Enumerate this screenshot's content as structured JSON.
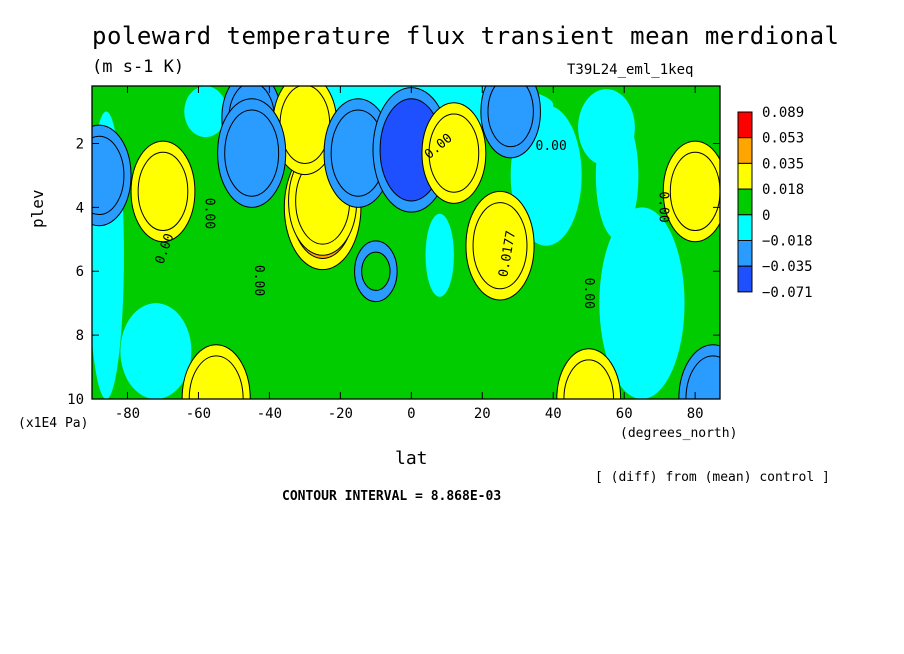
{
  "chart_data": {
    "type": "heatmap",
    "title": "poleward temperature flux transient mean merdional",
    "units": "(m s-1 K)",
    "run_id": "T39L24_eml_1keq",
    "xlabel": "lat",
    "x_unit_label": "(degrees_north)",
    "ylabel": "plev",
    "y_unit_label": "(x1E4 Pa)",
    "x_ticks": [
      -80,
      -60,
      -40,
      -20,
      0,
      20,
      40,
      60,
      80
    ],
    "y_ticks": [
      2,
      4,
      6,
      8,
      10
    ],
    "xlim": [
      -90,
      87
    ],
    "ylim": [
      10,
      0.2
    ],
    "diff_note": "[ (diff) from (mean) control ]",
    "contour_interval": "CONTOUR INTERVAL = 8.868E-03",
    "colorbar": {
      "labels": [
        "0.089",
        "0.053",
        "0.035",
        "0.018",
        "0",
        "−0.018",
        "−0.035",
        "−0.071"
      ],
      "colors": [
        "#ff0000",
        "#ffa500",
        "#ffff00",
        "#00cc00",
        "#00ffff",
        "#2a9bff",
        "#1e50ff"
      ]
    },
    "contour_labels": [
      "0.00",
      "0.00",
      "0.00",
      "0.00",
      "0.00",
      "0.00",
      "0.0177",
      "0.00"
    ],
    "features": [
      {
        "lat": -88,
        "plev": 3.0,
        "value": -0.025
      },
      {
        "lat": -70,
        "plev": 3.5,
        "value": 0.025
      },
      {
        "lat": -55,
        "plev": 10.0,
        "value": 0.03
      },
      {
        "lat": -25,
        "plev": 4.0,
        "value": 0.04
      },
      {
        "lat": -25,
        "plev": 3.8,
        "value": 0.03
      },
      {
        "lat": -45,
        "plev": 1.2,
        "value": -0.02
      },
      {
        "lat": -30,
        "plev": 1.4,
        "value": 0.025
      },
      {
        "lat": -45,
        "plev": 2.3,
        "value": -0.03
      },
      {
        "lat": -15,
        "plev": 2.3,
        "value": -0.03
      },
      {
        "lat": 0,
        "plev": 2.2,
        "value": -0.04
      },
      {
        "lat": 12,
        "plev": 2.3,
        "value": 0.025
      },
      {
        "lat": 25,
        "plev": 5.2,
        "value": 0.03
      },
      {
        "lat": 28,
        "plev": 1.0,
        "value": -0.02
      },
      {
        "lat": 80,
        "plev": 3.5,
        "value": 0.025
      },
      {
        "lat": 85,
        "plev": 10.0,
        "value": -0.03
      },
      {
        "lat": 50,
        "plev": 10.0,
        "value": 0.025
      },
      {
        "lat": -10,
        "plev": 6.0,
        "value": 0.0
      }
    ]
  }
}
